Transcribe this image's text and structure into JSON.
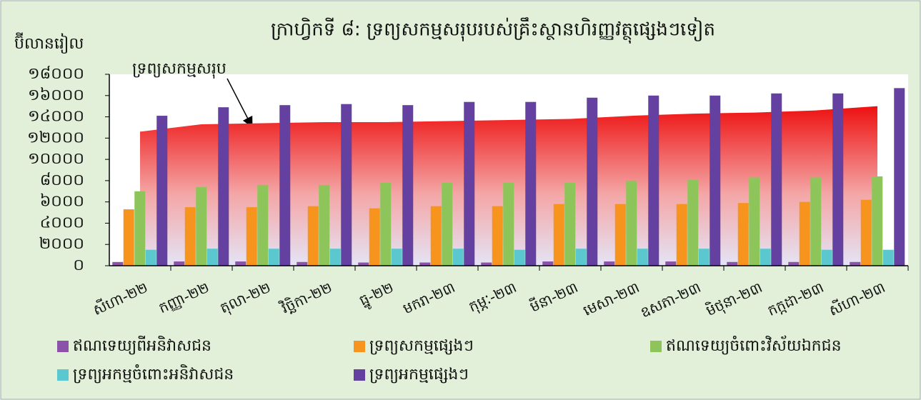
{
  "chart_data": {
    "type": "bar",
    "title": "ក្រាហ្វិកទី ៨: ទ្រព្យសកម្មសរុបរបស់គ្រឹះស្ថានហិរញ្ញវត្ថុផ្សេងៗទៀត",
    "y_label": "ប៊ីលានរៀល",
    "categories": [
      "សីហា-២២",
      "កញ្ញា-២២",
      "តុលា-២២",
      "វិច្ឆិកា-២២",
      "ធ្នូ-២២",
      "មករា-២៣",
      "កុម្ភៈ-២៣",
      "មីនា-២៣",
      "មេសា-២៣",
      "ឧសភា-២៣",
      "មិថុនា-២៣",
      "កក្កដា-២៣",
      "សីហា-២៣"
    ],
    "ylim": [
      0,
      18000
    ],
    "yticks": [
      {
        "value": 0,
        "label": "០"
      },
      {
        "value": 2000,
        "label": "២០០០"
      },
      {
        "value": 4000,
        "label": "៤០០០"
      },
      {
        "value": 6000,
        "label": "៦០០០"
      },
      {
        "value": 8000,
        "label": "៨០០០"
      },
      {
        "value": 10000,
        "label": "១០០០០"
      },
      {
        "value": 12000,
        "label": "១២០០០"
      },
      {
        "value": 14000,
        "label": "១៤០០០"
      },
      {
        "value": 16000,
        "label": "១៦០០០"
      },
      {
        "value": 18000,
        "label": "១៨០០០"
      }
    ],
    "area": {
      "name": "ទ្រព្យសកម្មសរុប",
      "color": "#ee1111",
      "values": [
        12600,
        13300,
        13400,
        13500,
        13500,
        13600,
        13700,
        13800,
        14100,
        14300,
        14400,
        14600,
        15000
      ]
    },
    "series": [
      {
        "name": "ឥណទេយ្យពីអនិវាសជន",
        "color": "#8a52a8",
        "values": [
          350,
          400,
          400,
          350,
          300,
          300,
          300,
          400,
          400,
          400,
          350,
          350,
          350
        ]
      },
      {
        "name": "ទ្រព្យសកម្មផ្សេងៗ",
        "color": "#f7941d",
        "values": [
          5300,
          5500,
          5500,
          5600,
          5400,
          5600,
          5600,
          5800,
          5800,
          5800,
          5900,
          6000,
          6200
        ]
      },
      {
        "name": "ឥណទេយ្យចំពោះវិស័យឯកជន",
        "color": "#8dc55a",
        "values": [
          7000,
          7400,
          7600,
          7600,
          7800,
          7800,
          7800,
          7800,
          8000,
          8100,
          8300,
          8300,
          8400
        ]
      },
      {
        "name": "ទ្រព្យអកម្មចំពោះអនិវាសជន",
        "color": "#5bc8d0",
        "values": [
          1500,
          1600,
          1600,
          1600,
          1600,
          1600,
          1500,
          1600,
          1600,
          1600,
          1600,
          1500,
          1500
        ]
      },
      {
        "name": "ទ្រព្យអកម្មផ្សេងៗ",
        "color": "#6440a0",
        "values": [
          14100,
          14900,
          15100,
          15200,
          15100,
          15400,
          15400,
          15800,
          16000,
          16000,
          16200,
          16200,
          16700
        ]
      }
    ]
  }
}
